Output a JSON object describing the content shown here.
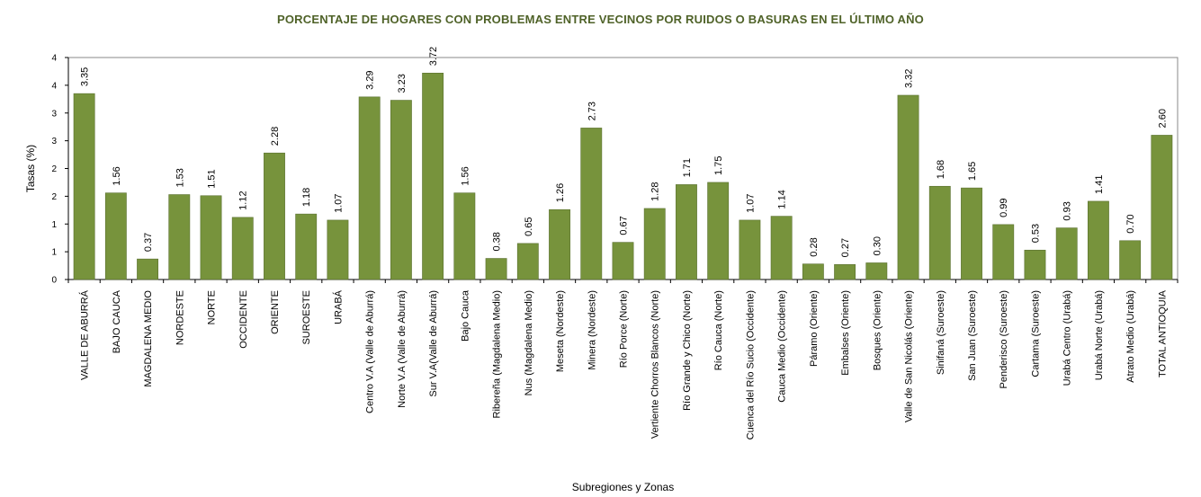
{
  "chart_data": {
    "type": "bar",
    "title": "PORCENTAJE DE HOGARES CON PROBLEMAS ENTRE VECINOS POR RUIDOS O BASURAS EN EL ÚLTIMO AÑO",
    "xlabel": "Subregiones y Zonas",
    "ylabel": "Tasas (%)",
    "ylim": [
      0,
      4
    ],
    "yticks": [
      0,
      0.5,
      1,
      1.5,
      2,
      2.5,
      3,
      3.5,
      4
    ],
    "ytick_labels": [
      "0",
      "1",
      "1",
      "2",
      "2",
      "3",
      "3",
      "4",
      "4"
    ],
    "bar_color": "#77933c",
    "title_color": "#4f6228",
    "categories": [
      "VALLE DE ABURRÁ",
      "BAJO CAUCA",
      "MAGDALENA MEDIO",
      "NORDESTE",
      "NORTE",
      "OCCIDENTE",
      "ORIENTE",
      "SUROESTE",
      "URABÁ",
      "Centro V.A (Valle de Aburrá)",
      "Norte V.A (Valle de Aburrá)",
      "Sur V.A(Valle de Aburrá)",
      "Bajo Cauca",
      "Ribereña (Magdalena Medio)",
      "Nus (Magdalena Medio)",
      "Meseta (Nordeste)",
      "Minera (Nordeste)",
      "Río Porce (Norte)",
      "Vertiente Chorros Blancos (Norte)",
      "Río Grande y Chico (Norte)",
      "Río Cauca (Norte)",
      "Cuenca del Río Sucio (Occidente)",
      "Cauca Medio (Occidente)",
      "Páramo (Oriente)",
      "Embalses (Oriente)",
      "Bosques (Oriente)",
      "Valle de San Nicolás (Oriente)",
      "Sinifaná (Suroeste)",
      "San Juan (Suroeste)",
      "Penderisco (Suroeste)",
      "Cartama (Suroeste)",
      "Urabá Centro (Urabá)",
      "Urabá Norte (Urabá)",
      "Atrato Medio (Urabá)",
      "TOTAL ANTIOQUIA"
    ],
    "values": [
      3.35,
      1.56,
      0.37,
      1.53,
      1.51,
      1.12,
      2.28,
      1.18,
      1.07,
      3.29,
      3.23,
      3.72,
      1.56,
      0.38,
      0.65,
      1.26,
      2.73,
      0.67,
      1.28,
      1.71,
      1.75,
      1.07,
      1.14,
      0.28,
      0.27,
      0.3,
      3.32,
      1.68,
      1.65,
      0.99,
      0.53,
      0.93,
      1.41,
      0.7,
      2.6
    ],
    "value_labels": [
      "3.35",
      "1.56",
      "0.37",
      "1.53",
      "1.51",
      "1.12",
      "2.28",
      "1.18",
      "1.07",
      "3.29",
      "3.23",
      "3.72",
      "1.56",
      "0.38",
      "0.65",
      "1.26",
      "2.73",
      "0.67",
      "1.28",
      "1.71",
      "1.75",
      "1.07",
      "1.14",
      "0.28",
      "0.27",
      "0.30",
      "3.32",
      "1.68",
      "1.65",
      "0.99",
      "0.53",
      "0.93",
      "1.41",
      "0.70",
      "2.60"
    ],
    "grid": false,
    "legend": false
  }
}
